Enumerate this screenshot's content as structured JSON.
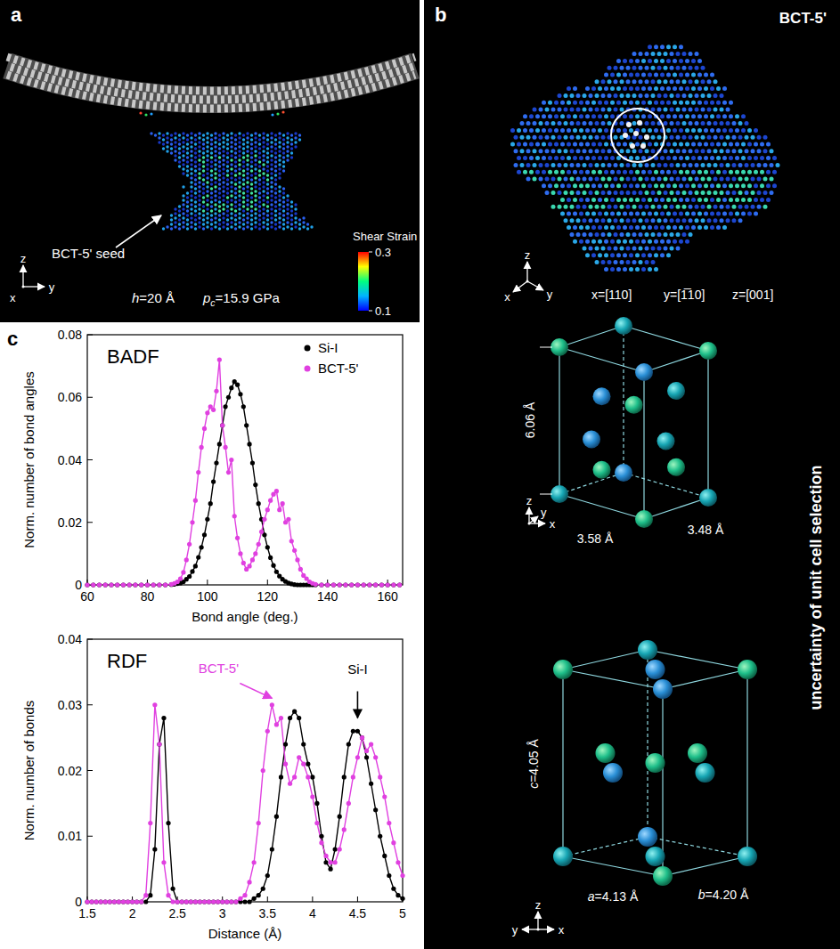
{
  "panel_a": {
    "letter": "a",
    "seed_label": "BCT-5' seed",
    "axes": [
      "z",
      "x",
      "y"
    ],
    "params": [
      {
        "symbol": "h",
        "text": "=20 Å"
      },
      {
        "symbol": "p",
        "subscript": "c",
        "text": "=15.9 GPa"
      }
    ],
    "colorbar": {
      "title": "Shear Strain",
      "range": [
        0.1,
        0.3
      ],
      "ticks": [
        0.1,
        0.3
      ]
    }
  },
  "panel_b": {
    "letter": "b",
    "title": "BCT-5'",
    "axes": [
      "x",
      "y",
      "z"
    ],
    "directions": [
      "x=[110]",
      "y=[1̅10]",
      "z=[001]"
    ],
    "cell_1": {
      "axes": [
        "z",
        "x",
        "y"
      ],
      "lengths": [
        "6.06 Å",
        "3.58 Å",
        "3.48 Å"
      ]
    },
    "cell_2": {
      "axes": [
        "z",
        "y",
        "x"
      ],
      "lengths": [
        {
          "symbol": "c",
          "text": "=4.05 Å"
        },
        {
          "symbol": "a",
          "text": "=4.13 Å"
        },
        {
          "symbol": "b",
          "text": "=4.20 Å"
        }
      ]
    },
    "side_text": "uncertainty of unit cell selection"
  },
  "panel_c": {
    "letter": "c"
  },
  "chart_data": [
    {
      "type": "scatter",
      "title": "BADF",
      "x_label": "Bond angle (deg.)",
      "y_label": "Norm. number of bond angles",
      "x": [
        60,
        62,
        64,
        66,
        68,
        70,
        72,
        74,
        76,
        78,
        80,
        82,
        84,
        86,
        88,
        89,
        90,
        91,
        92,
        93,
        94,
        95,
        96,
        97,
        98,
        99,
        100,
        101,
        102,
        103,
        104,
        105,
        106,
        107,
        108,
        109,
        110,
        111,
        112,
        113,
        114,
        115,
        116,
        117,
        118,
        119,
        120,
        121,
        122,
        123,
        124,
        125,
        126,
        127,
        128,
        129,
        130,
        131,
        132,
        133,
        134,
        135,
        136,
        138,
        140,
        142,
        144,
        146,
        148,
        150,
        152,
        154,
        156,
        158,
        160,
        162,
        164
      ],
      "series": [
        {
          "name": "Si-I",
          "color": "#000000",
          "marker": "circle",
          "line_style": "solid",
          "values": [
            0,
            0,
            0,
            0,
            0,
            0,
            0,
            0,
            0,
            0,
            0,
            0,
            0,
            0,
            0.0001,
            0.0002,
            0.0004,
            0.0006,
            0.001,
            0.0018,
            0.0027,
            0.0043,
            0.006,
            0.0088,
            0.012,
            0.016,
            0.021,
            0.026,
            0.033,
            0.039,
            0.045,
            0.051,
            0.057,
            0.06,
            0.063,
            0.065,
            0.064,
            0.061,
            0.057,
            0.051,
            0.045,
            0.039,
            0.032,
            0.026,
            0.021,
            0.016,
            0.012,
            0.0087,
            0.0062,
            0.0042,
            0.0028,
            0.0018,
            0.0011,
            0.0006,
            0.0003,
            0.0001,
            0,
            0,
            0,
            0,
            0,
            0,
            0,
            0,
            0,
            0,
            0,
            0,
            0,
            0,
            0,
            0,
            0,
            0,
            0,
            0,
            0
          ]
        },
        {
          "name": "BCT-5'",
          "color": "#e040e0",
          "marker": "circle",
          "line_style": "solid",
          "values": [
            0,
            0,
            0,
            0,
            0,
            0,
            0,
            0,
            0,
            0,
            0,
            0,
            0,
            0,
            0.0002,
            0.0005,
            0.001,
            0.002,
            0.004,
            0.008,
            0.013,
            0.02,
            0.027,
            0.036,
            0.044,
            0.05,
            0.055,
            0.057,
            0.056,
            0.062,
            0.072,
            0.051,
            0.044,
            0.036,
            0.04,
            0.022,
            0.015,
            0.01,
            0.007,
            0.005,
            0.006,
            0.008,
            0.01,
            0.013,
            0.017,
            0.021,
            0.024,
            0.027,
            0.029,
            0.03,
            0.024,
            0.026,
            0.02,
            0.021,
            0.014,
            0.011,
            0.008,
            0.005,
            0.003,
            0.002,
            0.001,
            0.0005,
            0.0002,
            0,
            0,
            0,
            0,
            0,
            0,
            0,
            0,
            0,
            0,
            0,
            0,
            0,
            0
          ]
        }
      ],
      "xlim": [
        60,
        165
      ],
      "ylim": [
        0,
        0.08
      ],
      "xticks": [
        60,
        80,
        100,
        120,
        140,
        160
      ],
      "yticks": [
        0,
        0.02,
        0.04,
        0.06,
        0.08
      ],
      "legend": "upper right"
    },
    {
      "type": "scatter",
      "title": "RDF",
      "x_label": "Distance (Å)",
      "y_label": "Norm. number of bonds",
      "x": [
        1.5,
        1.55,
        1.6,
        1.65,
        1.7,
        1.75,
        1.8,
        1.85,
        1.9,
        1.95,
        2,
        2.05,
        2.1,
        2.15,
        2.2,
        2.25,
        2.3,
        2.35,
        2.4,
        2.45,
        2.5,
        2.55,
        2.6,
        2.65,
        2.7,
        2.75,
        2.8,
        2.85,
        2.9,
        2.95,
        3,
        3.05,
        3.1,
        3.15,
        3.2,
        3.25,
        3.3,
        3.35,
        3.4,
        3.45,
        3.5,
        3.55,
        3.6,
        3.65,
        3.7,
        3.75,
        3.8,
        3.85,
        3.9,
        3.95,
        4,
        4.05,
        4.1,
        4.15,
        4.2,
        4.25,
        4.3,
        4.35,
        4.4,
        4.45,
        4.5,
        4.55,
        4.6,
        4.65,
        4.7,
        4.75,
        4.8,
        4.85,
        4.9,
        4.95,
        5
      ],
      "series": [
        {
          "name": "Si-I",
          "color": "#000000",
          "marker": "circle",
          "line_style": "solid",
          "values": [
            0,
            0,
            0,
            0,
            0,
            0,
            0,
            0,
            0,
            0,
            0,
            0,
            0,
            0,
            0.001,
            0.008,
            0.024,
            0.028,
            0.012,
            0.002,
            0,
            0,
            0,
            0,
            0,
            0,
            0,
            0,
            0,
            0,
            0,
            0,
            0,
            0,
            0,
            0,
            0,
            0.0005,
            0.001,
            0.002,
            0.004,
            0.008,
            0.013,
            0.019,
            0.024,
            0.028,
            0.029,
            0.028,
            0.024,
            0.021,
            0.019,
            0.015,
            0.01,
            0.006,
            0.005,
            0.008,
            0.013,
            0.019,
            0.024,
            0.026,
            0.026,
            0.025,
            0.022,
            0.018,
            0.014,
            0.01,
            0.007,
            0.004,
            0.002,
            0.001,
            0.0005
          ]
        },
        {
          "name": "BCT-5'",
          "color": "#e040e0",
          "marker": "circle",
          "line_style": "solid",
          "values": [
            0,
            0,
            0,
            0,
            0,
            0,
            0,
            0,
            0,
            0,
            0,
            0,
            0,
            0.001,
            0.012,
            0.03,
            0.024,
            0.006,
            0.001,
            0,
            0,
            0,
            0,
            0,
            0,
            0,
            0,
            0,
            0,
            0,
            0,
            0,
            0,
            0,
            0.0005,
            0.001,
            0.003,
            0.006,
            0.012,
            0.02,
            0.026,
            0.03,
            0.027,
            0.028,
            0.021,
            0.018,
            0.019,
            0.022,
            0.021,
            0.019,
            0.016,
            0.012,
            0.009,
            0.007,
            0.006,
            0.006,
            0.008,
            0.011,
            0.015,
            0.019,
            0.022,
            0.025,
            0.023,
            0.024,
            0.022,
            0.019,
            0.016,
            0.012,
            0.009,
            0.006,
            0.004
          ]
        }
      ],
      "xlim": [
        1.5,
        5
      ],
      "ylim": [
        0,
        0.04
      ],
      "xticks": [
        1.5,
        2,
        2.5,
        3,
        3.5,
        4,
        4.5,
        5
      ],
      "yticks": [
        0,
        0.01,
        0.02,
        0.03,
        0.04
      ],
      "annotations": [
        {
          "text": "BCT-5'",
          "x": 3.55,
          "y": 0.031,
          "color": "#e040e0"
        },
        {
          "text": "Si-I",
          "x": 4.5,
          "y": 0.028,
          "color": "#000000"
        }
      ]
    }
  ]
}
